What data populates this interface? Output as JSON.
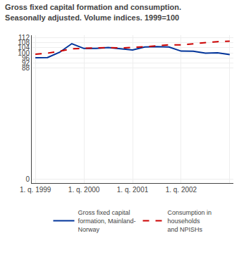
{
  "chart_data": {
    "type": "line",
    "title": "Gross fixed capital formation and consumption.\nSeasonally adjusted. Volume indices. 1999=100",
    "x": [
      0,
      1,
      2,
      3,
      4,
      5,
      6,
      7,
      8,
      9,
      10,
      11,
      12,
      13,
      14,
      15,
      16
    ],
    "series": [
      {
        "name": "Gross fixed capital\nformation, Mainland-\nNorway",
        "color": "#003399",
        "line_style": "solid",
        "values": [
          96.2,
          96.3,
          100.5,
          107.3,
          103.5,
          103.6,
          104.3,
          103.5,
          102.3,
          104.6,
          104.9,
          104.7,
          101.4,
          101.3,
          99.8,
          100.1,
          98.7
        ]
      },
      {
        "name": "Consumption in\nhouseholds\nand NPISHs",
        "color": "#cc0000",
        "line_style": "dashed",
        "values": [
          99.0,
          99.8,
          101.3,
          103.2,
          103.6,
          103.8,
          104.2,
          103.9,
          104.3,
          104.9,
          105.6,
          106.4,
          106.4,
          107.3,
          108.4,
          108.9,
          109.2
        ]
      }
    ],
    "xlim": [
      -0.3,
      16.3
    ],
    "xticks": [
      {
        "value": 0,
        "label": "1. q. 1999"
      },
      {
        "value": 4,
        "label": "1. q. 2000"
      },
      {
        "value": 8,
        "label": "1. q. 2001"
      },
      {
        "value": 12,
        "label": "1. q. 2002"
      },
      {
        "value": 16,
        "label": null
      }
    ],
    "ylim": [
      -3,
      114
    ],
    "yticks": [
      0,
      88,
      92,
      96,
      100,
      104,
      108,
      112
    ],
    "grid": true,
    "legend": "bottom"
  }
}
